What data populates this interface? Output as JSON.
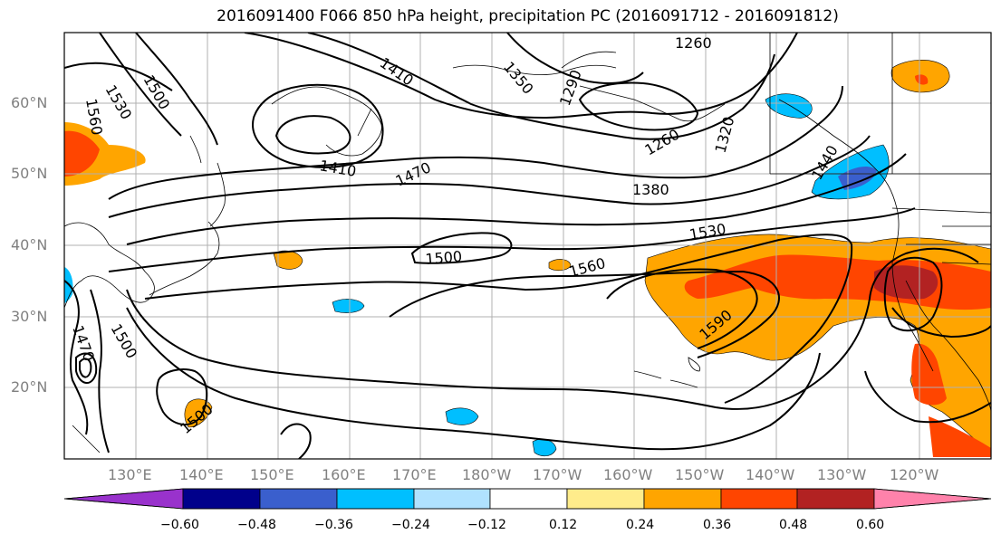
{
  "title": "2016091400 F066 850 hPa height, precipitation PC (2016091712 - 2016091812)",
  "lat_labels": [
    "60°N",
    "50°N",
    "40°N",
    "30°N",
    "20°N"
  ],
  "lon_labels": [
    "130°E",
    "140°E",
    "150°E",
    "160°E",
    "170°E",
    "180°W",
    "170°W",
    "160°W",
    "150°W",
    "140°W",
    "130°W",
    "120°W"
  ],
  "contour_labels": [
    "1260",
    "1410",
    "1350",
    "1290",
    "1530",
    "1500",
    "1560",
    "1410",
    "1470",
    "1260",
    "1320",
    "1440",
    "1380",
    "1530",
    "1500",
    "1560",
    "1590",
    "1470",
    "1500",
    "1500"
  ],
  "colorbar": {
    "ticks": [
      "−0.60",
      "−0.48",
      "−0.36",
      "−0.24",
      "−0.12",
      "0.12",
      "0.24",
      "0.36",
      "0.48",
      "0.60"
    ],
    "colors": [
      "#9932cc",
      "#00008b",
      "#3a5fcd",
      "#00bfff",
      "#b0e2ff",
      "#ffffff",
      "#ffec8b",
      "#ffa500",
      "#ff4500",
      "#b22222",
      "#ff82ab"
    ]
  }
}
